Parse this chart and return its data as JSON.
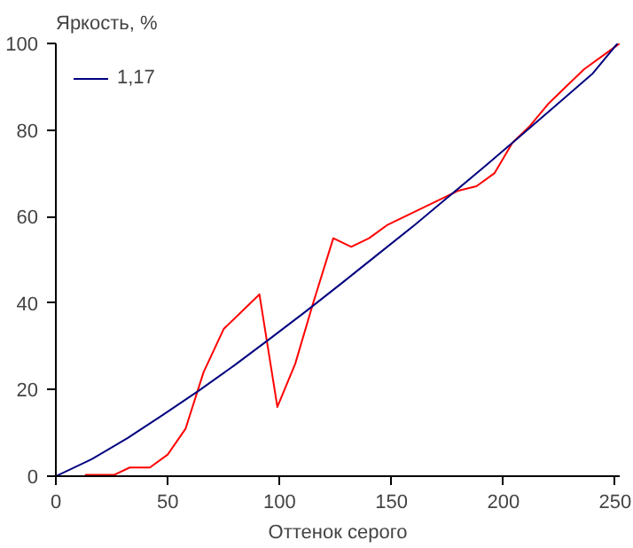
{
  "chart_data": {
    "type": "line",
    "xlabel": "Оттенок серого",
    "ylabel": "Яркость, %",
    "xlim": [
      0,
      252
    ],
    "ylim": [
      0,
      100
    ],
    "xticks": [
      0,
      50,
      100,
      150,
      200,
      250
    ],
    "yticks": [
      0,
      20,
      40,
      60,
      80,
      100
    ],
    "grid": false,
    "legend": "top left",
    "marker": "none",
    "line_style": "solid",
    "series": [
      {
        "color": "#ff0000",
        "x": [
          13,
          26,
          33,
          42,
          50,
          58,
          66,
          75,
          91,
          99,
          107,
          115,
          124,
          132,
          140,
          148,
          156,
          164,
          172,
          180,
          188,
          196,
          204,
          212,
          220,
          228,
          236,
          244,
          252
        ],
        "values": [
          0.3,
          0.3,
          2,
          2,
          5,
          11,
          24,
          34,
          42,
          16,
          26,
          40,
          55,
          53,
          55,
          58,
          60,
          62,
          64,
          66,
          67,
          70,
          77,
          81,
          86,
          90,
          94,
          97,
          100
        ]
      },
      {
        "name": "1,17",
        "color": "#000080",
        "x": [
          0,
          16,
          32,
          48,
          64,
          80,
          96,
          112,
          128,
          144,
          160,
          176,
          192,
          208,
          224,
          240,
          251
        ],
        "values": [
          0,
          3.9,
          8.8,
          14.2,
          19.8,
          25.7,
          31.9,
          38.2,
          44.7,
          51.3,
          57.9,
          64.8,
          71.7,
          78.8,
          85.9,
          93.1,
          100
        ]
      }
    ]
  }
}
